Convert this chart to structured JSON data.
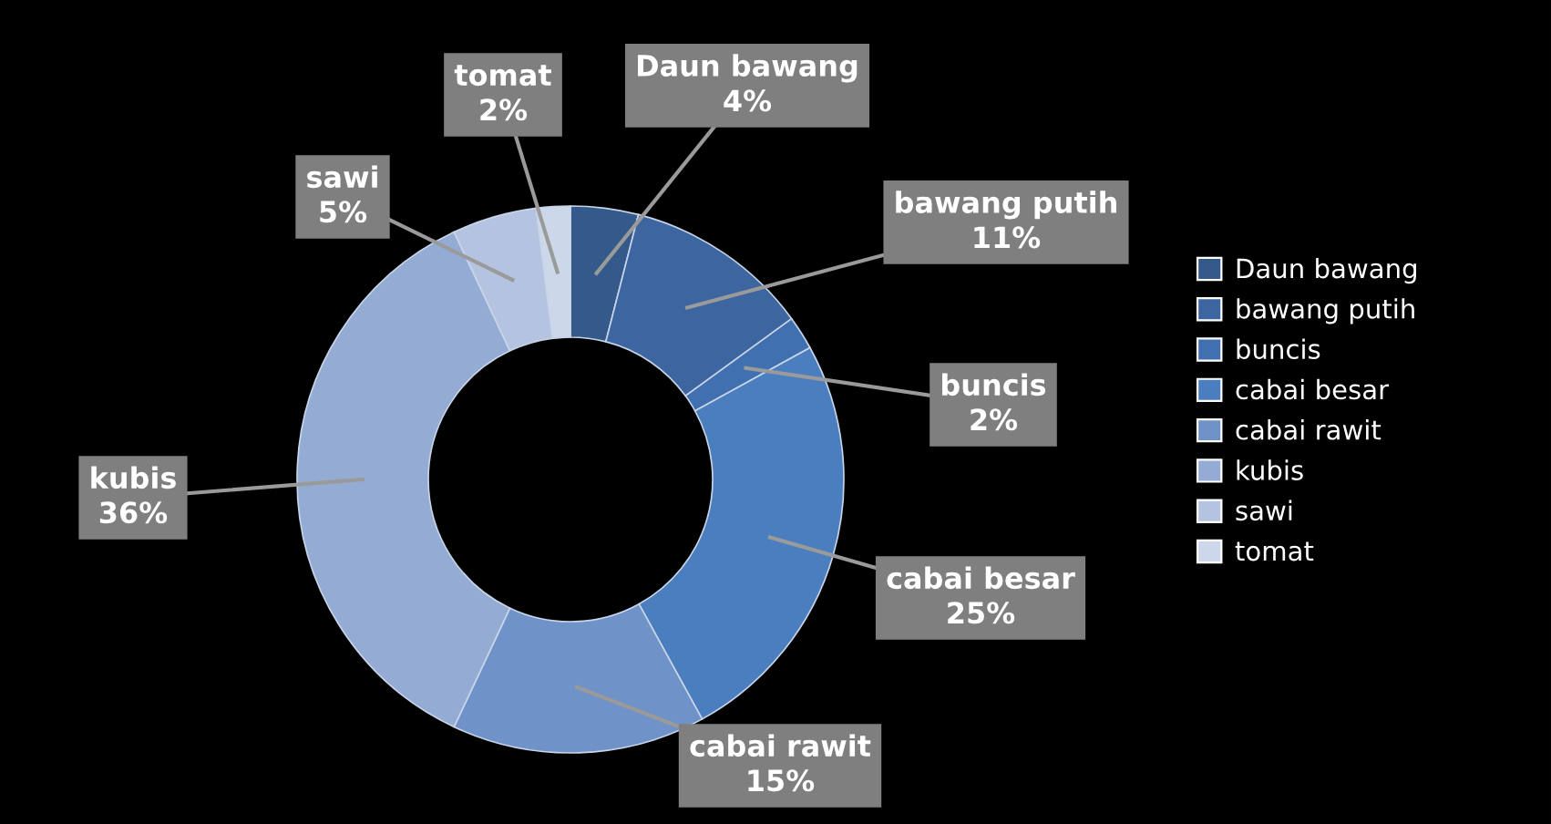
{
  "chart_data": {
    "type": "donut",
    "categories": [
      "Daun bawang",
      "bawang putih",
      "buncis",
      "cabai besar",
      "cabai rawit",
      "kubis",
      "sawi",
      "tomat"
    ],
    "values": [
      4,
      11,
      2,
      25,
      15,
      36,
      5,
      2
    ],
    "colors": [
      "#335a8a",
      "#3d66a0",
      "#4070b0",
      "#4a7ebf",
      "#6f93c8",
      "#94abd4",
      "#b3c3e0",
      "#cdd7ea"
    ],
    "value_labels": [
      "4%",
      "11%",
      "2%",
      "25%",
      "15%",
      "36%",
      "5%",
      "2%"
    ],
    "legend": "right"
  }
}
